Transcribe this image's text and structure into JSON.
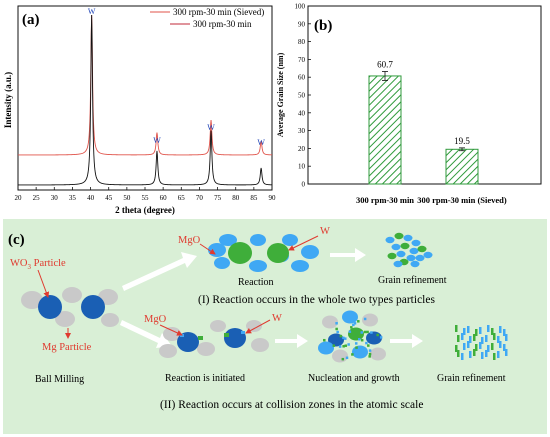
{
  "chart_data": [
    {
      "type": "line",
      "panel_label": "(a)",
      "xlabel": "2 theta (degree)",
      "ylabel": "Intensity (a.u.)",
      "xlim": [
        20,
        90
      ],
      "x_ticks": [
        "20",
        "25",
        "30",
        "35",
        "40",
        "45",
        "50",
        "55",
        "60",
        "65",
        "70",
        "75",
        "80",
        "85",
        "90"
      ],
      "grid": false,
      "legend_position": "top-right",
      "series": [
        {
          "name": "300 rpm-30 min (Sieved)",
          "color": "#e0534a",
          "peaks": [
            {
              "x": 40.3,
              "height": 1.0
            },
            {
              "x": 58.3,
              "height": 0.16
            },
            {
              "x": 73.2,
              "height": 0.25
            },
            {
              "x": 87.0,
              "height": 0.1
            }
          ]
        },
        {
          "name": "300 rpm-30 min",
          "color": "#111111",
          "peaks": [
            {
              "x": 40.3,
              "height": 1.0
            },
            {
              "x": 58.3,
              "height": 0.2
            },
            {
              "x": 73.2,
              "height": 0.32
            },
            {
              "x": 87.0,
              "height": 0.1
            }
          ]
        }
      ],
      "peak_labels": [
        {
          "x": 40.3,
          "text": "W"
        },
        {
          "x": 58.3,
          "text": "W"
        },
        {
          "x": 73.2,
          "text": "W"
        },
        {
          "x": 87.0,
          "text": "W"
        }
      ]
    },
    {
      "type": "bar",
      "panel_label": "(b)",
      "ylabel": "Average Grain Size (nm)",
      "xlabel": "",
      "ylim": [
        0,
        100
      ],
      "y_ticks": [
        "0",
        "10",
        "20",
        "30",
        "40",
        "50",
        "60",
        "70",
        "80",
        "90",
        "100"
      ],
      "categories": [
        "300 rpm-30 min",
        "300 rpm-30 min (Sieved)"
      ],
      "values": [
        60.7,
        19.5
      ],
      "value_labels": [
        "60.7",
        "19.5"
      ],
      "error": [
        2.5,
        0.8
      ],
      "bar_color": "#2f9a3b",
      "hatch": "diagonal"
    }
  ],
  "schematic": {
    "panel_label": "(c)",
    "bg_color": "#d9efd6",
    "colors": {
      "wo3": "#1a5fb4",
      "mg": "#c9c9c9",
      "mgo_blue": "#3fa8f4",
      "w_green": "#3fae3a"
    },
    "labels": {
      "wo3_particle": "WO",
      "wo3_sub": "3",
      "wo3_suffix": " Particle",
      "mg_particle": "Mg Particle",
      "ball_milling": "Ball Milling",
      "mgo_top": "MgO",
      "w_top": "W",
      "reaction": "Reaction",
      "grain_ref_top": "Grain refinement",
      "caption_1": "(I) Reaction occurs in the whole two types particles",
      "mgo_bottom": "MgO",
      "w_bottom": "W",
      "reaction_initiated": "Reaction is initiated",
      "nucleation": "Nucleation and growth",
      "grain_ref_bottom": "Grain refinement",
      "caption_2": "(II) Reaction occurs at collision zones in the atomic scale"
    }
  }
}
